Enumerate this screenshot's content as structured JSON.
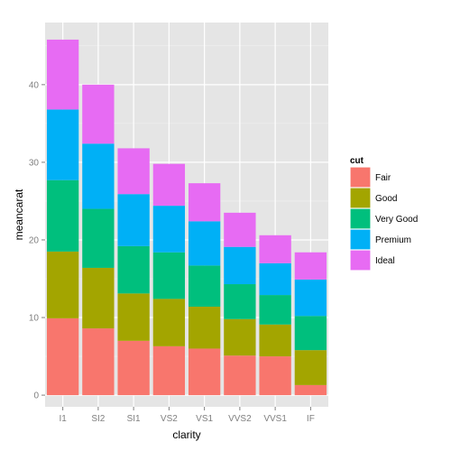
{
  "chart_data": {
    "type": "bar",
    "stacked": true,
    "title": "",
    "xlabel": "clarity",
    "ylabel": "meancarat",
    "categories": [
      "I1",
      "SI2",
      "SI1",
      "VS2",
      "VS1",
      "VVS2",
      "VVS1",
      "IF"
    ],
    "ylim": [
      -1.5,
      48
    ],
    "yticks": [
      0,
      10,
      20,
      30,
      40
    ],
    "grid": true,
    "legend": {
      "title": "cut",
      "placement": "right"
    },
    "series": [
      {
        "name": "Fair",
        "color": "#F8766D",
        "values": [
          9.9,
          8.6,
          7.0,
          6.3,
          6.0,
          5.1,
          5.0,
          1.3
        ]
      },
      {
        "name": "Good",
        "color": "#A3A500",
        "values": [
          8.6,
          7.8,
          6.1,
          6.1,
          5.4,
          4.7,
          4.1,
          4.5
        ]
      },
      {
        "name": "Very Good",
        "color": "#00BF7D",
        "values": [
          9.2,
          7.6,
          6.1,
          6.0,
          5.3,
          4.5,
          3.8,
          4.4
        ]
      },
      {
        "name": "Premium",
        "color": "#00B0F6",
        "values": [
          9.1,
          8.4,
          6.7,
          6.0,
          5.7,
          4.8,
          4.1,
          4.7
        ]
      },
      {
        "name": "Ideal",
        "color": "#E76BF3",
        "values": [
          9.0,
          7.6,
          5.9,
          5.4,
          4.9,
          4.4,
          3.6,
          3.5
        ]
      }
    ]
  }
}
